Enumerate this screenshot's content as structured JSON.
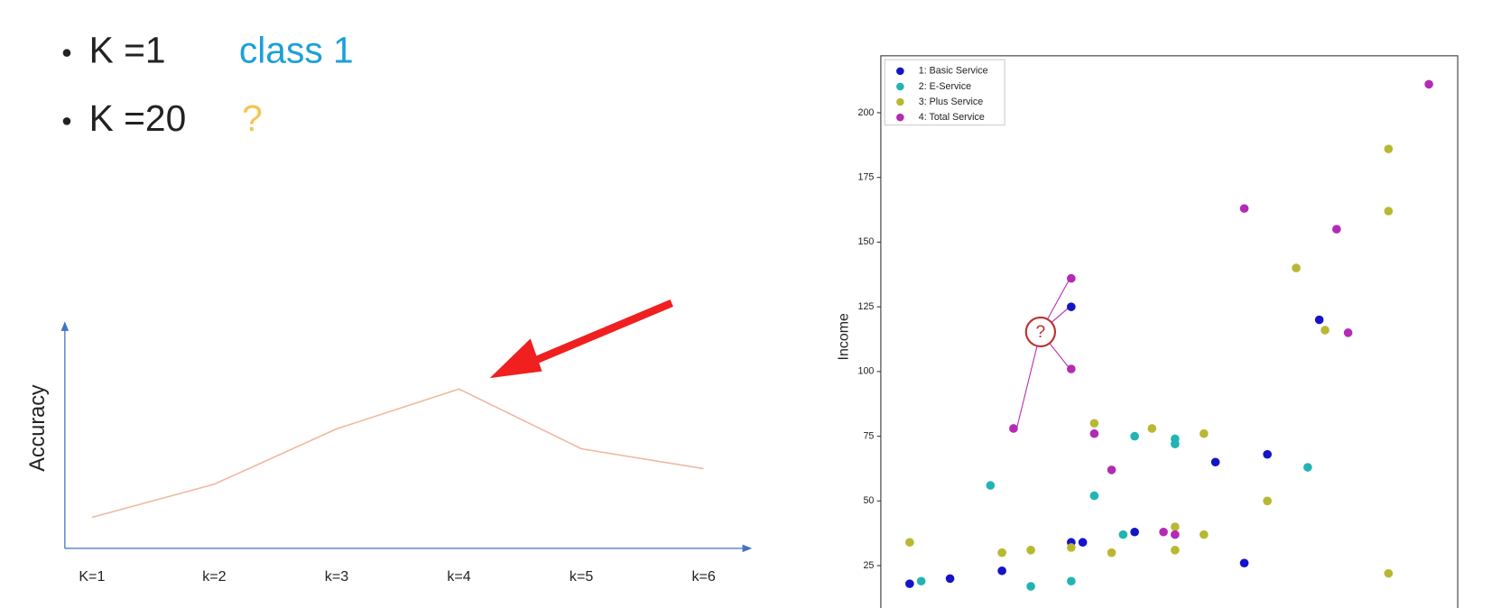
{
  "bullets": [
    {
      "label": "K =1",
      "result": "class 1"
    },
    {
      "label": "K =20",
      "result": "?"
    }
  ],
  "chart_data": [
    {
      "type": "line",
      "ylabel": "Accuracy",
      "categories": [
        "K=1",
        "k=2",
        "k=3",
        "k=4",
        "k=5",
        "k=6"
      ],
      "values": [
        0.14,
        0.29,
        0.54,
        0.72,
        0.45,
        0.36
      ],
      "ylim": [
        0,
        1
      ],
      "color": "#f0b8a0"
    },
    {
      "type": "scatter",
      "ylabel": "Income",
      "annotation": "?",
      "xlim": [
        0,
        100
      ],
      "ylim": [
        8,
        222
      ],
      "yticks": [
        25,
        50,
        75,
        100,
        125,
        150,
        175,
        200
      ],
      "legend": "upper-left",
      "series": [
        {
          "name": "1: Basic Service",
          "color": "#1414c8",
          "x": [
            5,
            12,
            21,
            33,
            35,
            44,
            58,
            63,
            67,
            76,
            33
          ],
          "values": [
            18,
            20,
            23,
            34,
            34,
            38,
            65,
            26,
            68,
            120,
            125
          ]
        },
        {
          "name": "2: E-Service",
          "color": "#22b4b4",
          "x": [
            7,
            19,
            26,
            33,
            37,
            42,
            44,
            51,
            51,
            74
          ],
          "values": [
            19,
            56,
            17,
            19,
            52,
            37,
            75,
            74,
            72,
            63
          ]
        },
        {
          "name": "3: Plus Service",
          "color": "#b8b832",
          "x": [
            5,
            21,
            26,
            33,
            37,
            40,
            47,
            51,
            51,
            56,
            56,
            67,
            72,
            77,
            88,
            88,
            88
          ],
          "values": [
            34,
            30,
            31,
            32,
            80,
            30,
            78,
            40,
            31,
            76,
            37,
            50,
            140,
            116,
            186,
            162,
            22
          ]
        },
        {
          "name": "4: Total Service",
          "color": "#b42ab4",
          "x": [
            23,
            33,
            33,
            37,
            40,
            49,
            51,
            63,
            79,
            81,
            95
          ],
          "values": [
            78,
            136,
            101,
            76,
            62,
            38,
            37,
            163,
            155,
            115,
            211
          ]
        }
      ]
    }
  ]
}
